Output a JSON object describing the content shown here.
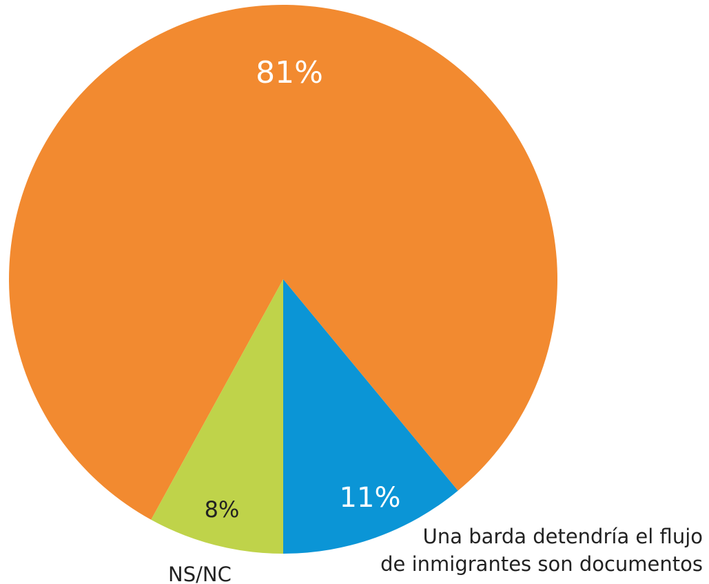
{
  "chart_data": {
    "type": "pie",
    "categories": [
      "Una barda detendría el flujo\nde inmigrantes son documentos",
      null,
      "NS/NC"
    ],
    "values": [
      11,
      81,
      8
    ],
    "value_labels": [
      "11%",
      "81%",
      "8%"
    ],
    "colors": [
      "#0b95d6",
      "#f28a30",
      "#bfd34a"
    ]
  }
}
